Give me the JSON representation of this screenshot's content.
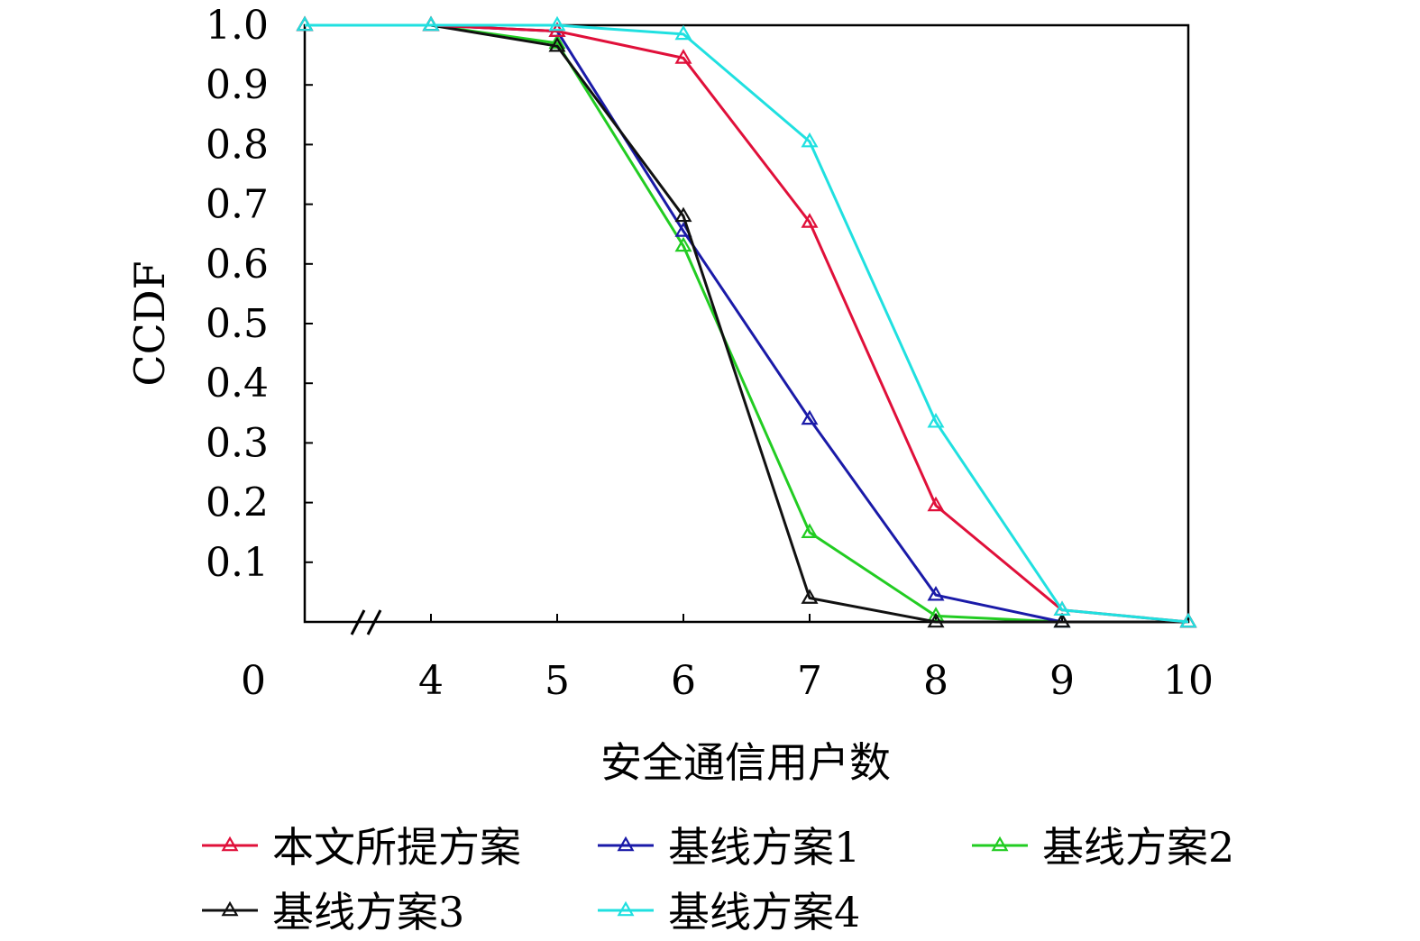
{
  "chart_data": {
    "type": "line",
    "title": "",
    "xlabel": "安全通信用户数",
    "ylabel": "CCDF",
    "x_tick_labels": [
      "0",
      "4",
      "5",
      "6",
      "7",
      "8",
      "9",
      "10"
    ],
    "y_tick_labels": [
      "0.1",
      "0.2",
      "0.3",
      "0.4",
      "0.5",
      "0.6",
      "0.7",
      "0.8",
      "0.9",
      "1.0"
    ],
    "x_axis_break": true,
    "xlim": [
      3,
      10
    ],
    "ylim": [
      0,
      1
    ],
    "grid": false,
    "marker": "triangle",
    "legend_position": "bottom",
    "x": [
      3,
      4,
      5,
      6,
      7,
      8,
      9,
      10
    ],
    "series": [
      {
        "name": "本文所提方案",
        "color": "#e0103a",
        "values": [
          1.0,
          1.0,
          0.99,
          0.945,
          0.67,
          0.195,
          0.02,
          0.0
        ]
      },
      {
        "name": "基线方案1",
        "color": "#1a1aa8",
        "values": [
          1.0,
          1.0,
          0.99,
          0.655,
          0.34,
          0.045,
          0.0,
          0.0
        ]
      },
      {
        "name": "基线方案2",
        "color": "#22cc22",
        "values": [
          1.0,
          1.0,
          0.97,
          0.63,
          0.15,
          0.01,
          0.0,
          0.0
        ]
      },
      {
        "name": "基线方案3",
        "color": "#111111",
        "values": [
          1.0,
          1.0,
          0.965,
          0.68,
          0.04,
          0.0,
          0.0,
          0.0
        ]
      },
      {
        "name": "基线方案4",
        "color": "#20e0e0",
        "values": [
          1.0,
          1.0,
          1.0,
          0.985,
          0.805,
          0.335,
          0.02,
          0.0
        ]
      }
    ]
  }
}
